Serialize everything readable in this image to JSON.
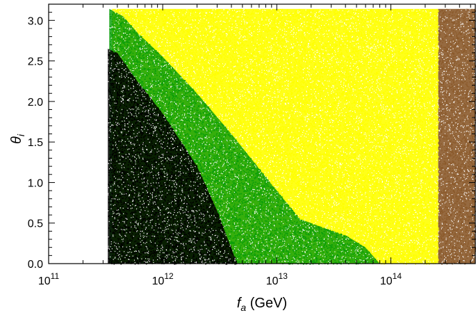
{
  "chart_data": {
    "type": "scatter",
    "title": "",
    "xlabel": {
      "symbol": "f",
      "subscript": "a",
      "unit": " (GeV)"
    },
    "ylabel": {
      "symbol": "θ",
      "subscript": "i"
    },
    "xscale": "log",
    "xlim": [
      100000000000.0,
      550000000000000.0
    ],
    "ylim": [
      0,
      3.2
    ],
    "x_ticks": [
      {
        "value": 100000000000.0,
        "base": "10",
        "exp": "11"
      },
      {
        "value": 1000000000000.0,
        "base": "10",
        "exp": "12"
      },
      {
        "value": 10000000000000.0,
        "base": "10",
        "exp": "13"
      },
      {
        "value": 100000000000000.0,
        "base": "10",
        "exp": "14"
      }
    ],
    "y_ticks": [
      "0.0",
      "0.5",
      "1.0",
      "1.5",
      "2.0",
      "2.5",
      "3.0"
    ],
    "grid": false,
    "legend": "none",
    "series": [
      {
        "color": "#ffff00",
        "description_region": "upper right",
        "x_range": [
          360000000000.0,
          260000000000000.0
        ],
        "y_range": [
          0,
          3.1416
        ]
      },
      {
        "color": "#0a9e0a",
        "boundary_upper": [
          [
            340000000000.0,
            3.1416
          ],
          [
            450000000000.0,
            3.05
          ],
          [
            600000000000.0,
            2.85
          ],
          [
            1000000000000.0,
            2.55
          ],
          [
            2000000000000.0,
            2.1
          ],
          [
            4000000000000.0,
            1.6
          ],
          [
            10000000000000.0,
            0.9
          ],
          [
            16000000000000.0,
            0.55
          ],
          [
            25000000000000.0,
            0.45
          ],
          [
            40000000000000.0,
            0.35
          ],
          [
            60000000000000.0,
            0.2
          ],
          [
            80000000000000.0,
            0.0
          ]
        ]
      },
      {
        "color": "#000000",
        "boundary_upper": [
          [
            330000000000.0,
            2.65
          ],
          [
            400000000000.0,
            2.6
          ],
          [
            600000000000.0,
            2.25
          ],
          [
            1000000000000.0,
            1.85
          ],
          [
            2000000000000.0,
            1.2
          ],
          [
            3000000000000.0,
            0.65
          ],
          [
            4500000000000.0,
            0.0
          ]
        ]
      },
      {
        "color": "#8b5a2b",
        "x_range": [
          260000000000000.0,
          550000000000000.0
        ],
        "y_range": [
          0,
          3.1416
        ]
      }
    ]
  }
}
